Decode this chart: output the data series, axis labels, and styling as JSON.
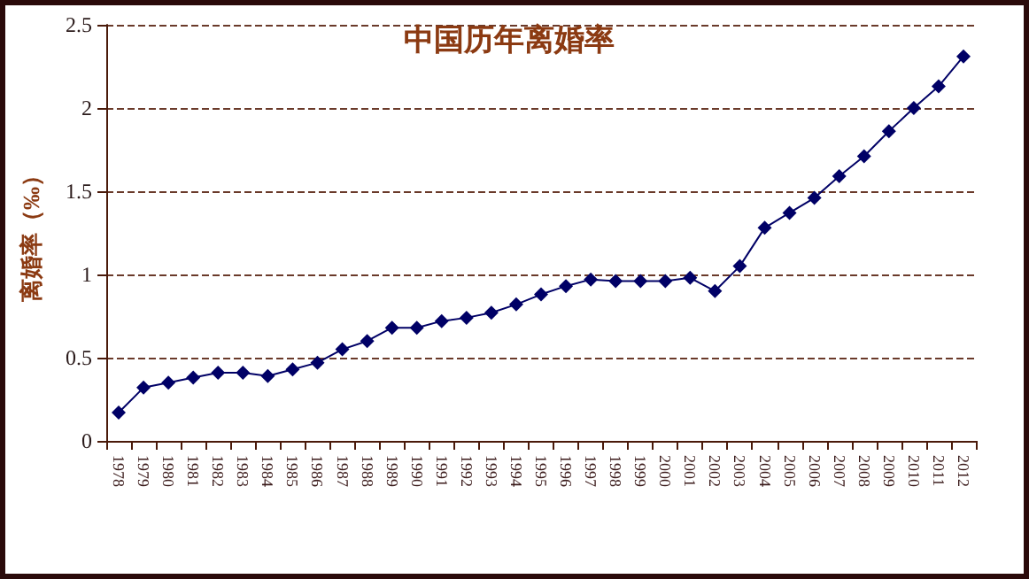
{
  "chart_data": {
    "type": "line",
    "title": "中国历年离婚率",
    "ylabel": "离婚率（‰）",
    "categories": [
      "1978",
      "1979",
      "1980",
      "1981",
      "1982",
      "1983",
      "1984",
      "1985",
      "1986",
      "1987",
      "1988",
      "1989",
      "1990",
      "1991",
      "1992",
      "1993",
      "1994",
      "1995",
      "1996",
      "1997",
      "1998",
      "1999",
      "2000",
      "2001",
      "2002",
      "2003",
      "2004",
      "2005",
      "2006",
      "2007",
      "2008",
      "2009",
      "2010",
      "2011",
      "2012"
    ],
    "series": [
      {
        "color": "#000066",
        "values": [
          0.17,
          0.32,
          0.35,
          0.38,
          0.41,
          0.41,
          0.39,
          0.43,
          0.47,
          0.55,
          0.6,
          0.68,
          0.68,
          0.72,
          0.74,
          0.77,
          0.82,
          0.88,
          0.93,
          0.97,
          0.96,
          0.96,
          0.96,
          0.98,
          0.9,
          1.05,
          1.28,
          1.37,
          1.46,
          1.59,
          1.71,
          1.86,
          2.0,
          2.13,
          2.31
        ]
      }
    ],
    "ylim": [
      0,
      2.5
    ],
    "yticks": [
      0,
      0.5,
      1,
      1.5,
      2,
      2.5
    ],
    "grid": "y",
    "marker": "diamond",
    "line_style": "solid"
  }
}
